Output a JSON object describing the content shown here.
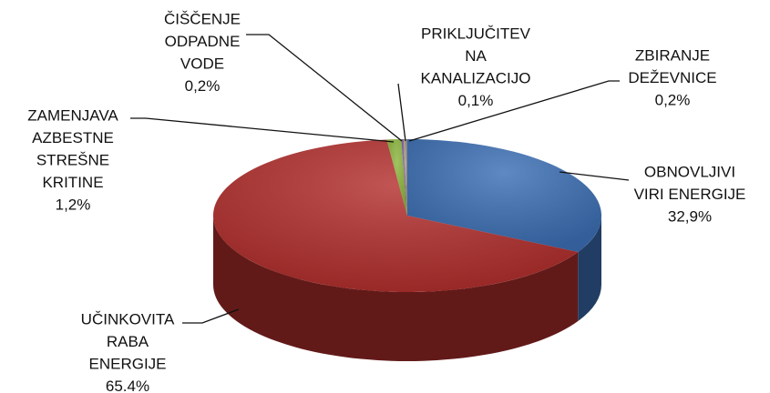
{
  "chart_data": {
    "type": "pie3d",
    "categories": [
      [
        "OBNOVLJIVI",
        "VIRI ENERGIJE"
      ],
      [
        "UČINKOVITA",
        "RABA",
        "ENERGIJE"
      ],
      [
        "ZAMENJAVA",
        "AZBESTNE",
        "STREŠNE",
        "KRITINE"
      ],
      [
        "ČIŠČENJE",
        "ODPADNE",
        "VODE"
      ],
      [
        "PRIKLJUČITEV",
        "NA",
        "KANALIZACIJO"
      ],
      [
        "ZBIRANJE",
        "DEŽEVNICE"
      ]
    ],
    "values": [
      32.9,
      65.4,
      1.2,
      0.2,
      0.1,
      0.2
    ],
    "value_labels": [
      "32,9%",
      "65.4%",
      "1,2%",
      "0,2%",
      "0,1%",
      "0,2%"
    ],
    "colors": [
      "#3c6fb4",
      "#b3302e",
      "#8cb53e",
      "#7b5fa2",
      "#c9a46a",
      "#8a8a8a"
    ]
  }
}
